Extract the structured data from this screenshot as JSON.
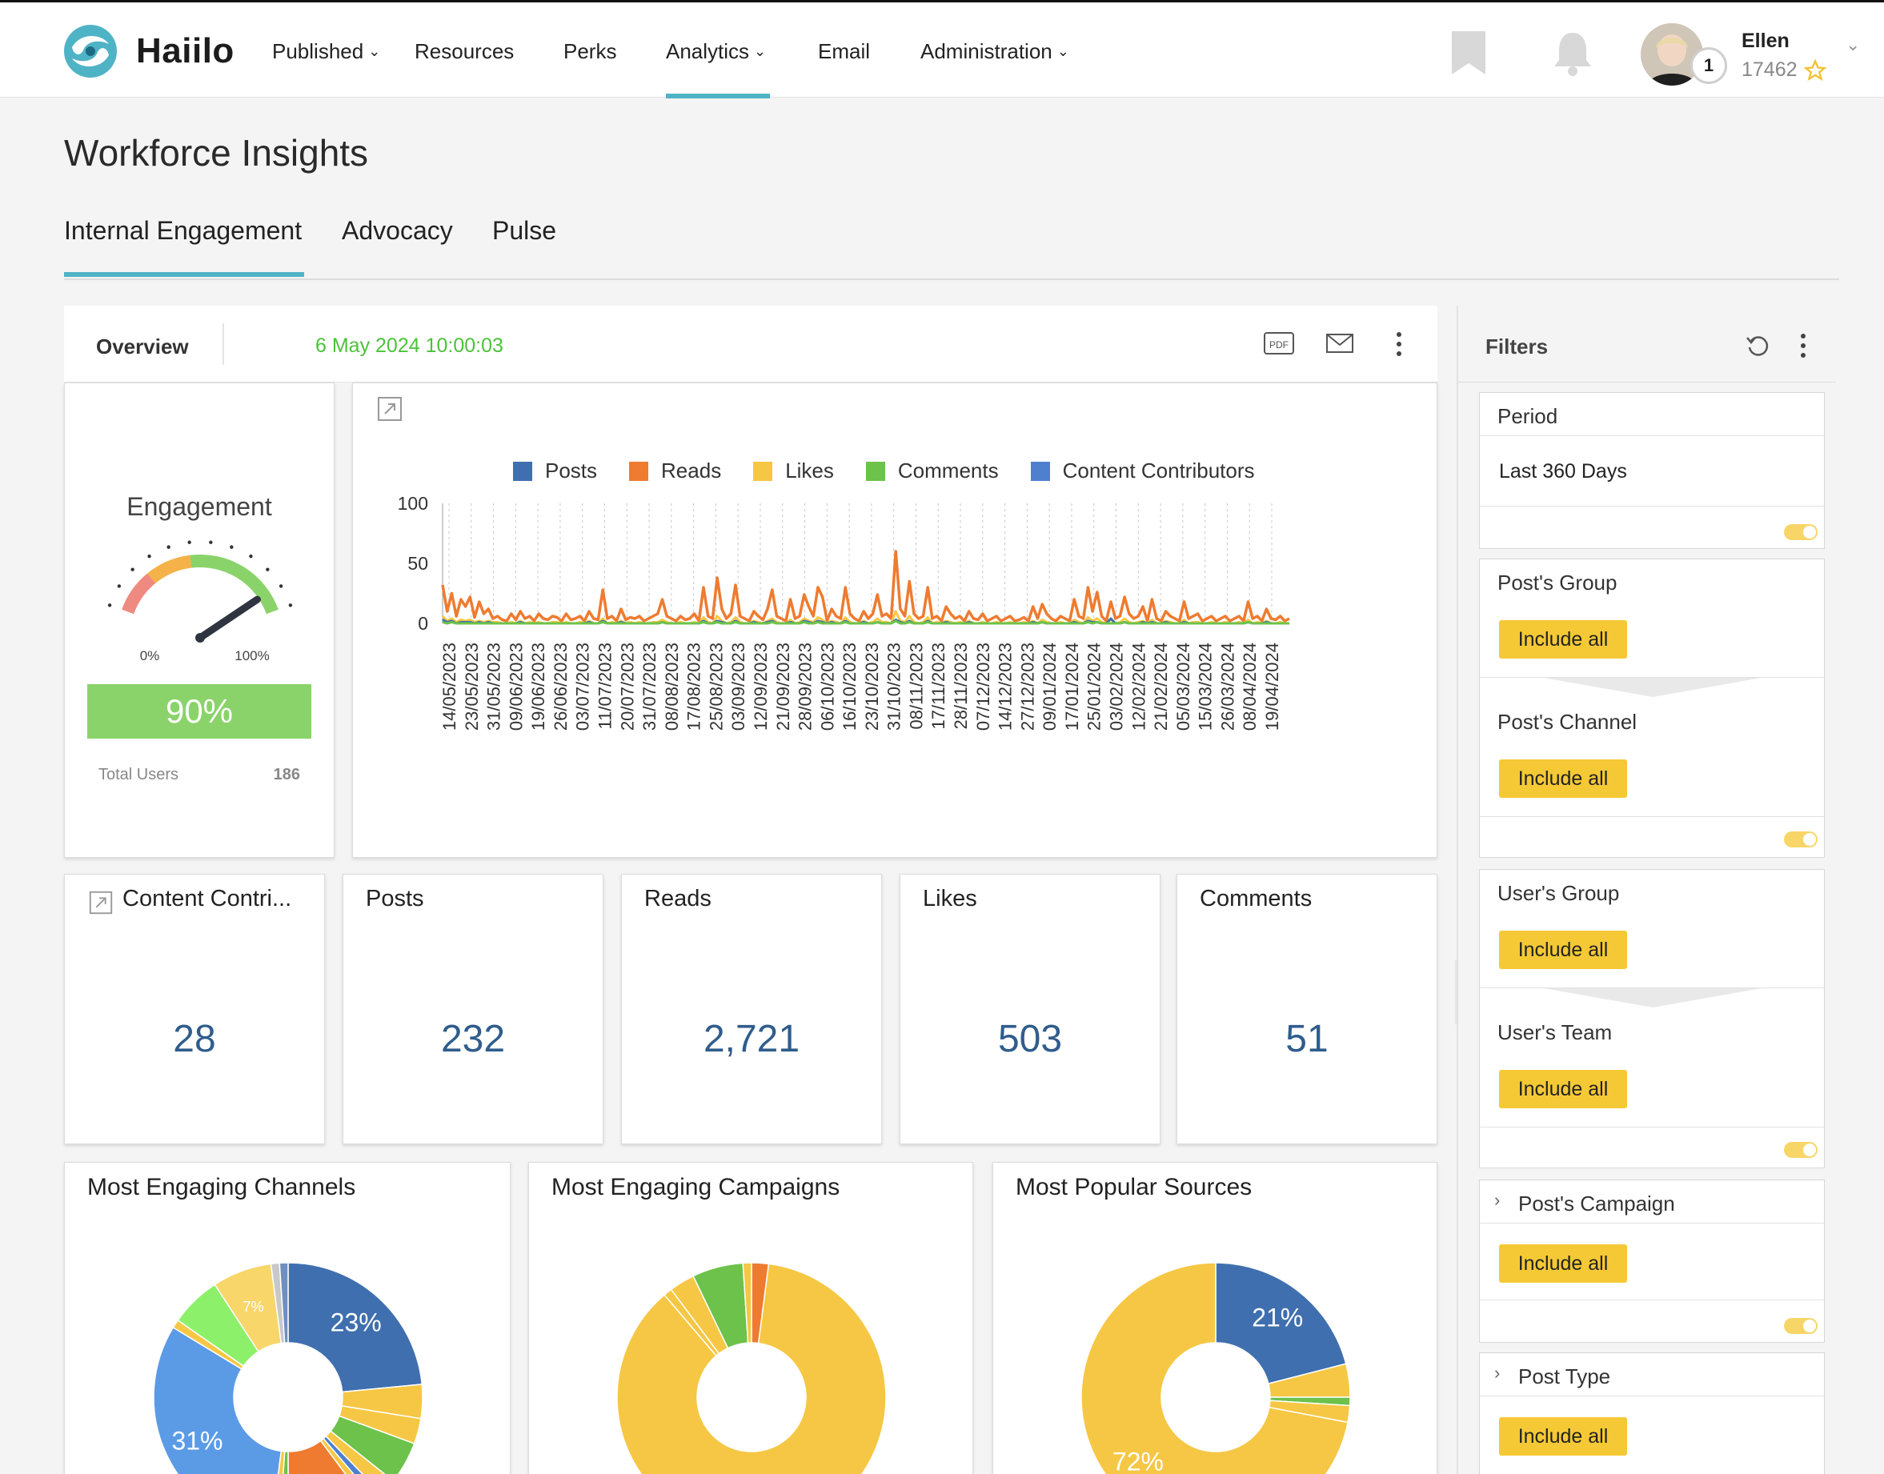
{
  "app": {
    "name": "Haiilo"
  },
  "nav": {
    "items": [
      {
        "label": "Published",
        "dropdown": true
      },
      {
        "label": "Resources",
        "dropdown": false
      },
      {
        "label": "Perks",
        "dropdown": false
      },
      {
        "label": "Analytics",
        "dropdown": true,
        "active": true
      },
      {
        "label": "Email",
        "dropdown": false
      },
      {
        "label": "Administration",
        "dropdown": true
      }
    ]
  },
  "user": {
    "name": "Ellen",
    "points": "17462",
    "level": "1"
  },
  "page": {
    "title": "Workforce Insights",
    "tabs": [
      "Internal Engagement",
      "Advocacy",
      "Pulse"
    ],
    "active_tab": "Internal Engagement"
  },
  "overview": {
    "label": "Overview",
    "timestamp": "6 May 2024 10:00:03"
  },
  "engagement": {
    "title": "Engagement",
    "min_label": "0%",
    "max_label": "100%",
    "percent": "90%",
    "gauge_value": 0.9,
    "total_users_label": "Total Users",
    "total_users": "186"
  },
  "colors": {
    "accent": "#4fb3c6",
    "posts": "#3f6fae",
    "reads": "#ee7b30",
    "likes": "#f6c744",
    "comments": "#6cc24a",
    "contributors": "#4f80d0",
    "include_btn": "#f5c935",
    "value_text": "#2f5d8c",
    "timestamp": "#4cc23a"
  },
  "chart_data": [
    {
      "type": "line",
      "legend": [
        "Posts",
        "Reads",
        "Likes",
        "Comments",
        "Content Contributors"
      ],
      "ylim": [
        0,
        100
      ],
      "y_ticks": [
        "100",
        "50",
        "0"
      ],
      "x_tick_labels": [
        "14/05/2023",
        "23/05/2023",
        "31/05/2023",
        "09/06/2023",
        "19/06/2023",
        "26/06/2023",
        "03/07/2023",
        "11/07/2023",
        "20/07/2023",
        "31/07/2023",
        "08/08/2023",
        "17/08/2023",
        "25/08/2023",
        "03/09/2023",
        "12/09/2023",
        "21/09/2023",
        "28/09/2023",
        "06/10/2023",
        "16/10/2023",
        "23/10/2023",
        "31/10/2023",
        "08/11/2023",
        "17/11/2023",
        "28/11/2023",
        "07/12/2023",
        "14/12/2023",
        "27/12/2023",
        "09/01/2024",
        "17/01/2024",
        "25/01/2024",
        "03/02/2024",
        "12/02/2024",
        "21/02/2024",
        "05/03/2024",
        "15/03/2024",
        "26/03/2024",
        "08/04/2024",
        "19/04/2024"
      ],
      "series": [
        {
          "name": "Reads",
          "values": [
            32,
            10,
            25,
            6,
            20,
            14,
            22,
            5,
            18,
            8,
            12,
            4,
            6,
            3,
            2,
            8,
            3,
            10,
            4,
            6,
            2,
            8,
            4,
            3,
            6,
            5,
            2,
            8,
            3,
            4,
            6,
            2,
            10,
            4,
            3,
            28,
            4,
            6,
            2,
            12,
            3,
            5,
            4,
            6,
            2,
            4,
            6,
            8,
            20,
            6,
            4,
            2,
            6,
            3,
            4,
            8,
            2,
            30,
            6,
            4,
            38,
            12,
            4,
            8,
            32,
            6,
            4,
            2,
            10,
            6,
            3,
            12,
            28,
            6,
            4,
            2,
            20,
            4,
            6,
            24,
            14,
            6,
            30,
            22,
            2,
            12,
            6,
            4,
            30,
            8,
            4,
            2,
            10,
            4,
            8,
            24,
            6,
            8,
            4,
            60,
            12,
            6,
            35,
            8,
            4,
            6,
            30,
            4,
            6,
            2,
            14,
            8,
            4,
            6,
            2,
            10,
            4,
            3,
            8,
            2,
            4,
            6,
            2,
            4,
            6,
            2,
            3,
            5,
            2,
            14,
            4,
            16,
            8,
            4,
            2,
            6,
            4,
            2,
            20,
            6,
            4,
            30,
            10,
            26,
            6,
            2,
            18,
            4,
            6,
            22,
            8,
            4,
            6,
            14,
            2,
            20,
            4,
            2,
            10,
            6,
            4,
            2,
            18,
            4,
            6,
            8,
            2,
            4,
            6,
            2,
            4,
            6,
            2,
            4,
            6,
            2,
            18,
            4,
            6,
            2,
            12,
            4,
            3,
            6,
            2,
            4
          ]
        },
        {
          "name": "Likes",
          "values": [
            6,
            2,
            4,
            1,
            3,
            2,
            3,
            1,
            2,
            1,
            2,
            1,
            1,
            0,
            0,
            1,
            0,
            2,
            0,
            1,
            0,
            1,
            0,
            0,
            1,
            1,
            0,
            1,
            0,
            0,
            1,
            0,
            2,
            0,
            0,
            4,
            0,
            1,
            0,
            2,
            0,
            1,
            0,
            1,
            0,
            0,
            1,
            1,
            3,
            1,
            0,
            0,
            1,
            0,
            0,
            1,
            0,
            5,
            1,
            0,
            6,
            2,
            0,
            1,
            5,
            1,
            0,
            0,
            2,
            1,
            0,
            2,
            4,
            1,
            0,
            0,
            3,
            0,
            1,
            4,
            2,
            1,
            5,
            3,
            0,
            2,
            1,
            0,
            5,
            1,
            0,
            0,
            2,
            0,
            1,
            4,
            1,
            1,
            0,
            10,
            2,
            1,
            6,
            1,
            0,
            1,
            5,
            0,
            1,
            0,
            2,
            1,
            0,
            1,
            0,
            2,
            0,
            0,
            1,
            0,
            0,
            1,
            0,
            0,
            1,
            0,
            0,
            1,
            0,
            2,
            0,
            3,
            1,
            0,
            0,
            1,
            0,
            0,
            3,
            1,
            0,
            5,
            2,
            4,
            1,
            0,
            3,
            0,
            1,
            4,
            1,
            0,
            1,
            2,
            0,
            3,
            0,
            0,
            2,
            1,
            0,
            0,
            3,
            0,
            1,
            1,
            0,
            0,
            1,
            0,
            0,
            1,
            0,
            0,
            1,
            0,
            3,
            0,
            1,
            0,
            2,
            0,
            0,
            1,
            0,
            0
          ]
        },
        {
          "name": "Posts",
          "values": [
            3,
            1,
            2,
            0,
            1,
            1,
            1,
            0,
            1,
            0,
            1,
            0,
            0,
            0,
            0,
            0,
            0,
            1,
            0,
            0,
            0,
            0,
            0,
            0,
            0,
            0,
            0,
            0,
            0,
            0,
            0,
            0,
            1,
            0,
            0,
            2,
            0,
            0,
            0,
            1,
            0,
            0,
            0,
            0,
            0,
            0,
            0,
            0,
            1,
            0,
            0,
            0,
            0,
            0,
            0,
            0,
            0,
            2,
            0,
            0,
            2,
            1,
            0,
            0,
            2,
            0,
            0,
            0,
            1,
            0,
            0,
            1,
            2,
            0,
            0,
            0,
            1,
            0,
            0,
            2,
            1,
            0,
            2,
            1,
            0,
            1,
            0,
            0,
            2,
            0,
            0,
            0,
            1,
            0,
            0,
            1,
            0,
            0,
            0,
            3,
            1,
            0,
            2,
            0,
            0,
            0,
            2,
            0,
            0,
            0,
            1,
            0,
            0,
            0,
            0,
            1,
            0,
            0,
            0,
            0,
            0,
            0,
            0,
            0,
            0,
            0,
            0,
            0,
            0,
            1,
            0,
            1,
            0,
            0,
            0,
            0,
            0,
            0,
            1,
            0,
            0,
            2,
            1,
            1,
            0,
            0,
            4,
            0,
            0,
            1,
            0,
            0,
            0,
            1,
            0,
            1,
            0,
            0,
            1,
            0,
            0,
            0,
            1,
            0,
            0,
            0,
            0,
            0,
            0,
            0,
            0,
            0,
            0,
            0,
            0,
            0,
            1,
            0,
            0,
            0,
            1,
            0,
            0,
            0,
            0,
            0
          ]
        },
        {
          "name": "Comments",
          "values": [
            1,
            0,
            1,
            0,
            0,
            0,
            0,
            0,
            0,
            0,
            0,
            0,
            0,
            0,
            0,
            0,
            0,
            0,
            0,
            0,
            0,
            0,
            0,
            0,
            0,
            0,
            0,
            0,
            0,
            0,
            0,
            0,
            0,
            0,
            0,
            1,
            0,
            0,
            0,
            0,
            0,
            0,
            0,
            0,
            0,
            0,
            0,
            0,
            1,
            0,
            0,
            0,
            0,
            0,
            0,
            0,
            0,
            1,
            0,
            0,
            1,
            0,
            0,
            0,
            1,
            0,
            0,
            0,
            0,
            0,
            0,
            0,
            1,
            0,
            0,
            0,
            0,
            0,
            0,
            1,
            0,
            0,
            1,
            0,
            0,
            0,
            0,
            0,
            1,
            0,
            0,
            0,
            0,
            0,
            0,
            1,
            0,
            0,
            0,
            2,
            0,
            0,
            1,
            0,
            0,
            0,
            1,
            0,
            0,
            0,
            0,
            0,
            0,
            0,
            0,
            0,
            0,
            0,
            0,
            0,
            0,
            0,
            0,
            0,
            0,
            0,
            0,
            0,
            0,
            0,
            0,
            1,
            0,
            0,
            0,
            0,
            0,
            0,
            0,
            0,
            0,
            1,
            0,
            1,
            0,
            0,
            0,
            0,
            0,
            1,
            0,
            0,
            0,
            0,
            0,
            0,
            0,
            0,
            0,
            0,
            0,
            0,
            0,
            0,
            0,
            0,
            0,
            0,
            0,
            0,
            0,
            0,
            0,
            0,
            0,
            0,
            1,
            0,
            0,
            0,
            0,
            0,
            0,
            0,
            0,
            0
          ]
        }
      ]
    },
    {
      "type": "pie",
      "title": "Most Engaging Channels",
      "labels": [
        "23%",
        "31%",
        "7%",
        "10%"
      ],
      "slices": [
        {
          "value": 23,
          "color": "#3f6fae",
          "label": "23%"
        },
        {
          "value": 4,
          "color": "#f6c744",
          "label": ""
        },
        {
          "value": 3,
          "color": "#f6c744",
          "label": ""
        },
        {
          "value": 5,
          "color": "#6cc24a",
          "label": ""
        },
        {
          "value": 2,
          "color": "#f6c744",
          "label": ""
        },
        {
          "value": 1,
          "color": "#4f80d0",
          "label": ""
        },
        {
          "value": 1,
          "color": "#f6c744",
          "label": ""
        },
        {
          "value": 10,
          "color": "#ee7b30",
          "label": "10%"
        },
        {
          "value": 1,
          "color": "#6cc24a",
          "label": ""
        },
        {
          "value": 1,
          "color": "#f6c744",
          "label": ""
        },
        {
          "value": 31,
          "color": "#5b9be6",
          "label": "31%"
        },
        {
          "value": 1,
          "color": "#f6c744",
          "label": ""
        },
        {
          "value": 6,
          "color": "#8df06a",
          "label": ""
        },
        {
          "value": 7,
          "color": "#f8d66a",
          "label": "7%"
        },
        {
          "value": 1,
          "color": "#c8c8c8",
          "label": ""
        },
        {
          "value": 1,
          "color": "#6f8fc0",
          "label": ""
        }
      ]
    },
    {
      "type": "pie",
      "title": "Most Engaging Campaigns",
      "labels": [],
      "slices": [
        {
          "value": 2,
          "color": "#ee7b30",
          "label": ""
        },
        {
          "value": 85,
          "color": "#f6c744",
          "label": ""
        },
        {
          "value": 1,
          "color": "#f6c744",
          "label": ""
        },
        {
          "value": 3,
          "color": "#f6c744",
          "label": ""
        },
        {
          "value": 6,
          "color": "#6cc24a",
          "label": ""
        },
        {
          "value": 1,
          "color": "#f6c744",
          "label": ""
        }
      ]
    },
    {
      "type": "pie",
      "title": "Most Popular Sources",
      "labels": [
        "21%",
        "72%"
      ],
      "slices": [
        {
          "value": 21,
          "color": "#3f6fae",
          "label": "21%"
        },
        {
          "value": 4,
          "color": "#f6c744",
          "label": ""
        },
        {
          "value": 1,
          "color": "#6cc24a",
          "label": ""
        },
        {
          "value": 2,
          "color": "#f6c744",
          "label": ""
        },
        {
          "value": 72,
          "color": "#f6c744",
          "label": "72%"
        }
      ]
    }
  ],
  "stats": [
    {
      "title": "Content Contri...",
      "value": "28",
      "has_icon": true
    },
    {
      "title": "Posts",
      "value": "232"
    },
    {
      "title": "Reads",
      "value": "2,721"
    },
    {
      "title": "Likes",
      "value": "503"
    },
    {
      "title": "Comments",
      "value": "51"
    }
  ],
  "filters": {
    "title": "Filters",
    "period": {
      "label": "Period",
      "value": "Last 360 Days"
    },
    "posts_group": {
      "label": "Post's Group",
      "button": "Include all"
    },
    "posts_channel": {
      "label": "Post's Channel",
      "button": "Include all"
    },
    "users_group": {
      "label": "User's Group",
      "button": "Include all"
    },
    "users_team": {
      "label": "User's Team",
      "button": "Include all"
    },
    "posts_campaign": {
      "label": "Post's Campaign",
      "button": "Include all"
    },
    "post_type": {
      "label": "Post Type",
      "button": "Include all"
    }
  }
}
